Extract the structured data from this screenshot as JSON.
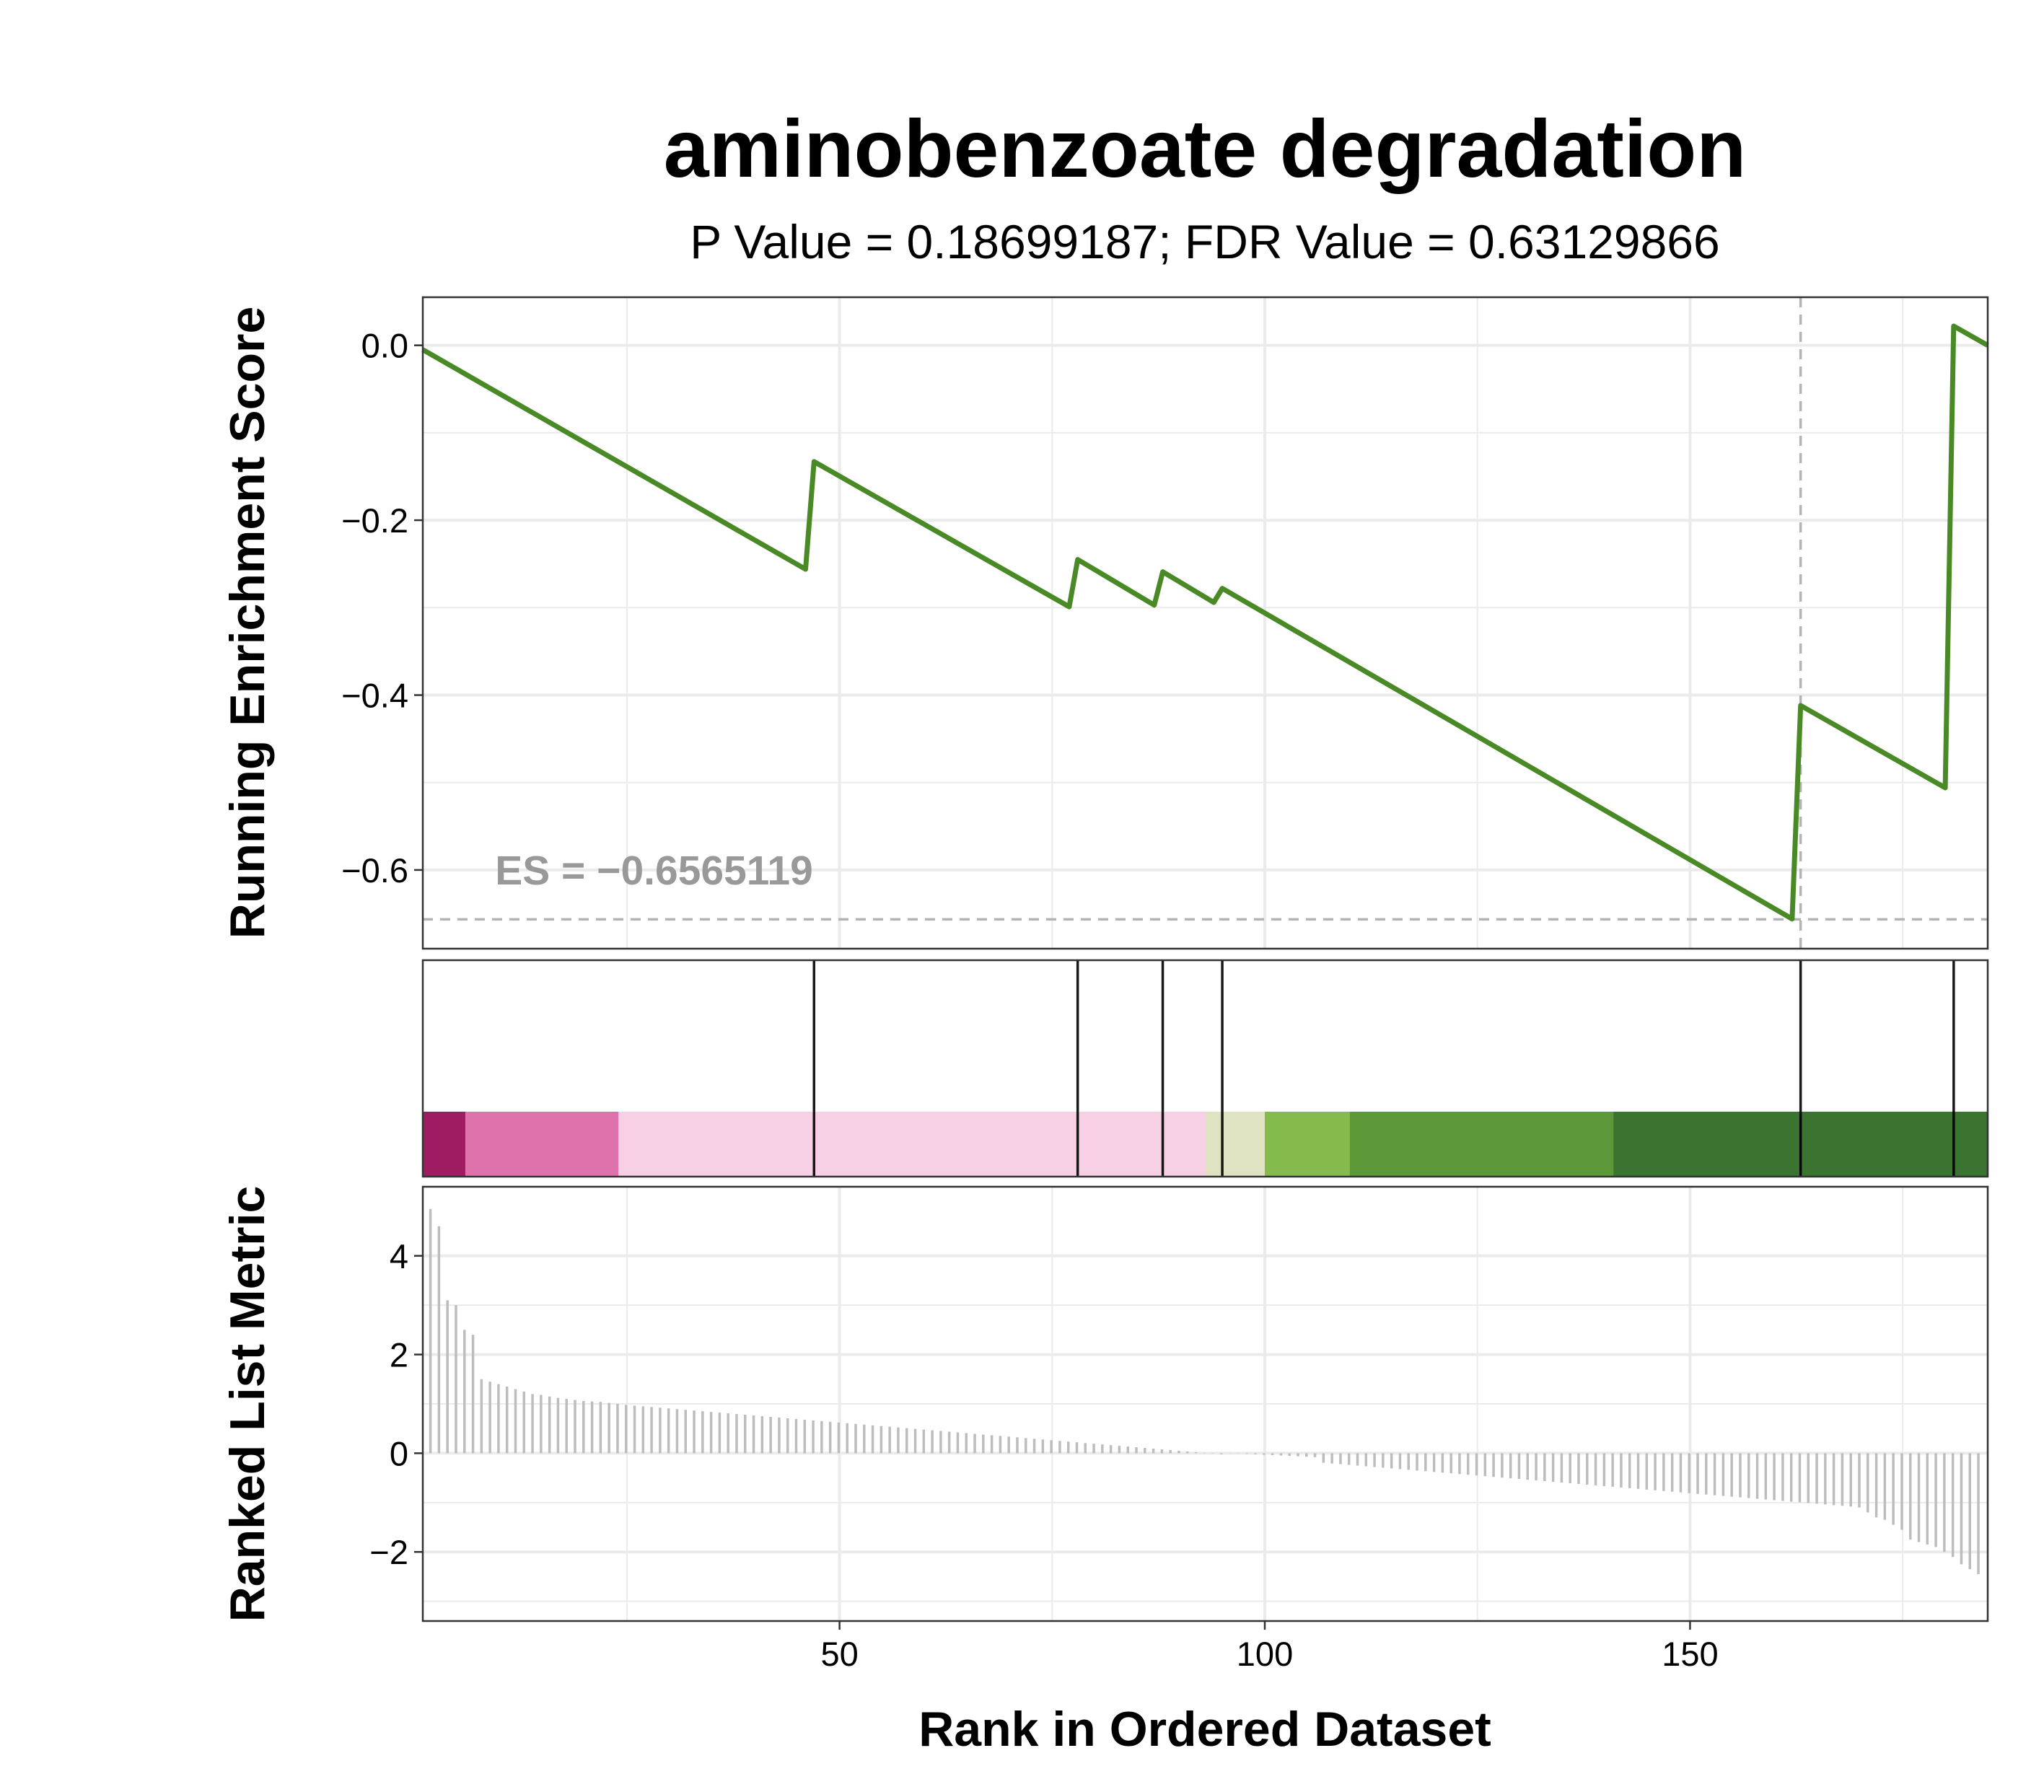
{
  "title": "aminobenzoate degradation",
  "subtitle": "P Value = 0.18699187; FDR Value = 0.63129866",
  "colors": {
    "curve": "#4a8a26",
    "grid": "#ebebeb",
    "ref_line": "#b3b3b3",
    "es_label": "#999999",
    "metric_bar": "#bdbdbd",
    "heat": [
      "#a01c62",
      "#df72ad",
      "#f7d0e6",
      "#dfe3c2",
      "#84bb4c",
      "#5c9837",
      "#3b7330"
    ]
  },
  "chart_data": [
    {
      "type": "line",
      "name": "running-enrichment",
      "ylabel": "Running Enrichment Score",
      "xlim": [
        1,
        185
      ],
      "ylim": [
        -0.69,
        0.055
      ],
      "yticks": [
        0.0,
        -0.2,
        -0.4,
        -0.6
      ],
      "ytick_labels": [
        "0.0",
        "−0.2",
        "−0.4",
        "−0.6"
      ],
      "xgrid": [
        50,
        100,
        150
      ],
      "x": [
        1,
        46,
        47,
        77,
        78,
        87,
        88,
        94,
        95,
        162,
        163,
        180,
        181,
        185
      ],
      "y": [
        -0.005,
        -0.256,
        -0.133,
        -0.299,
        -0.245,
        -0.297,
        -0.259,
        -0.294,
        -0.278,
        -0.656,
        -0.412,
        -0.506,
        0.022,
        0.0
      ],
      "es_value": -0.6565119,
      "es_label": "ES = −0.6565119",
      "es_rank": 163
    },
    {
      "type": "heatmap",
      "name": "hit-positions",
      "hits": [
        47,
        78,
        88,
        95,
        163,
        181
      ],
      "bands": [
        {
          "from": 1,
          "to": 6,
          "color": "#a01c62"
        },
        {
          "from": 6,
          "to": 24,
          "color": "#df72ad"
        },
        {
          "from": 24,
          "to": 93,
          "color": "#f7d0e6"
        },
        {
          "from": 93,
          "to": 100,
          "color": "#dfe3c2"
        },
        {
          "from": 100,
          "to": 110,
          "color": "#84bb4c"
        },
        {
          "from": 110,
          "to": 141,
          "color": "#5c9837"
        },
        {
          "from": 141,
          "to": 185,
          "color": "#3b7330"
        }
      ]
    },
    {
      "type": "bar",
      "name": "ranked-list-metric",
      "ylabel": "Ranked List Metric",
      "xlabel": "Rank in Ordered Dataset",
      "xlim": [
        1,
        185
      ],
      "ylim": [
        -3.4,
        5.4
      ],
      "yticks": [
        4,
        2,
        0,
        -2
      ],
      "ytick_labels": [
        "4",
        "2",
        "0",
        "−2"
      ],
      "xticks": [
        50,
        100,
        150
      ],
      "xtick_labels": [
        "50",
        "100",
        "150"
      ],
      "n": 185
    }
  ]
}
